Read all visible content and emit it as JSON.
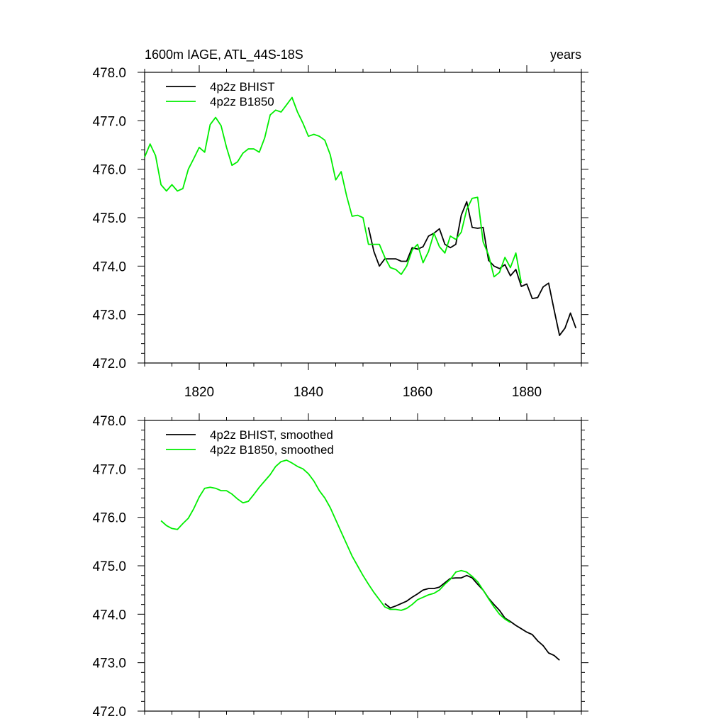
{
  "chart_data": [
    {
      "type": "line",
      "title_left": "1600m IAGE, ATL_44S-18S",
      "title_right": "years",
      "xlim": [
        1810,
        1890
      ],
      "ylim": [
        472.0,
        478.0
      ],
      "x_ticks": [
        1820,
        1840,
        1860,
        1880
      ],
      "x_tick_labels": [
        "1820",
        "1840",
        "1860",
        "1880"
      ],
      "y_ticks": [
        472.0,
        473.0,
        474.0,
        475.0,
        476.0,
        477.0,
        478.0
      ],
      "y_tick_labels": [
        "472.0",
        "473.0",
        "474.0",
        "475.0",
        "476.0",
        "477.0",
        "478.0"
      ],
      "series": [
        {
          "name": "4p2z BHIST",
          "color": "#000000",
          "x": [
            1851,
            1852,
            1853,
            1854,
            1855,
            1856,
            1857,
            1858,
            1859,
            1860,
            1861,
            1862,
            1863,
            1864,
            1865,
            1866,
            1867,
            1868,
            1869,
            1870,
            1871,
            1872,
            1873,
            1874,
            1875,
            1876,
            1877,
            1878,
            1879,
            1880,
            1881,
            1882,
            1883,
            1884,
            1885,
            1886,
            1887,
            1888,
            1889
          ],
          "y": [
            474.8,
            474.3,
            474.0,
            474.15,
            474.15,
            474.15,
            474.1,
            474.1,
            474.38,
            474.35,
            474.4,
            474.62,
            474.68,
            474.77,
            474.45,
            474.38,
            474.45,
            475.05,
            475.33,
            474.8,
            474.78,
            474.8,
            474.12,
            474.0,
            473.95,
            474.03,
            473.8,
            473.93,
            473.58,
            473.63,
            473.33,
            473.35,
            473.57,
            473.65,
            473.1,
            472.57,
            472.72,
            473.03,
            472.72
          ]
        },
        {
          "name": "4p2z B1850",
          "color": "#00ee00",
          "x": [
            1810,
            1811,
            1812,
            1813,
            1814,
            1815,
            1816,
            1817,
            1818,
            1819,
            1820,
            1821,
            1822,
            1823,
            1824,
            1825,
            1826,
            1827,
            1828,
            1829,
            1830,
            1831,
            1832,
            1833,
            1834,
            1835,
            1836,
            1837,
            1838,
            1839,
            1840,
            1841,
            1842,
            1843,
            1844,
            1845,
            1846,
            1847,
            1848,
            1849,
            1850,
            1851,
            1852,
            1853,
            1854,
            1855,
            1856,
            1857,
            1858,
            1859,
            1860,
            1861,
            1862,
            1863,
            1864,
            1865,
            1866,
            1867,
            1868,
            1869,
            1870,
            1871,
            1872,
            1873,
            1874,
            1875,
            1876,
            1877,
            1878,
            1879
          ],
          "y": [
            476.25,
            476.52,
            476.28,
            475.68,
            475.55,
            475.68,
            475.55,
            475.6,
            476.0,
            476.22,
            476.45,
            476.35,
            476.92,
            477.07,
            476.9,
            476.45,
            476.08,
            476.15,
            476.33,
            476.42,
            476.42,
            476.35,
            476.65,
            477.12,
            477.22,
            477.18,
            477.33,
            477.48,
            477.18,
            476.95,
            476.68,
            476.72,
            476.68,
            476.6,
            476.3,
            475.78,
            475.95,
            475.45,
            475.03,
            475.05,
            475.0,
            474.45,
            474.45,
            474.45,
            474.18,
            473.97,
            473.93,
            473.83,
            474.0,
            474.33,
            474.45,
            474.07,
            474.3,
            474.68,
            474.4,
            474.27,
            474.62,
            474.55,
            474.7,
            475.17,
            475.4,
            475.42,
            474.5,
            474.23,
            473.78,
            473.87,
            474.18,
            473.97,
            474.27,
            473.65
          ]
        }
      ]
    },
    {
      "type": "line",
      "xlim": [
        1810,
        1890
      ],
      "ylim": [
        472.0,
        478.0
      ],
      "x_ticks": [
        1820,
        1840,
        1860,
        1880
      ],
      "y_ticks": [
        472.0,
        473.0,
        474.0,
        475.0,
        476.0,
        477.0,
        478.0
      ],
      "y_tick_labels": [
        "472.0",
        "473.0",
        "474.0",
        "475.0",
        "476.0",
        "477.0",
        "478.0"
      ],
      "series": [
        {
          "name": "4p2z BHIST, smoothed",
          "color": "#000000",
          "x": [
            1854,
            1855,
            1856,
            1857,
            1858,
            1859,
            1860,
            1861,
            1862,
            1863,
            1864,
            1865,
            1866,
            1867,
            1868,
            1869,
            1870,
            1871,
            1872,
            1873,
            1874,
            1875,
            1876,
            1877,
            1878,
            1879,
            1880,
            1881,
            1882,
            1883,
            1884,
            1885,
            1886
          ],
          "y": [
            474.22,
            474.13,
            474.17,
            474.22,
            474.27,
            474.35,
            474.42,
            474.5,
            474.53,
            474.53,
            474.56,
            474.65,
            474.74,
            474.75,
            474.75,
            474.8,
            474.75,
            474.62,
            474.5,
            474.33,
            474.2,
            474.08,
            473.92,
            473.85,
            473.77,
            473.7,
            473.63,
            473.58,
            473.45,
            473.35,
            473.2,
            473.15,
            473.05
          ]
        },
        {
          "name": "4p2z B1850, smoothed",
          "color": "#00ee00",
          "x": [
            1813,
            1814,
            1815,
            1816,
            1817,
            1818,
            1819,
            1820,
            1821,
            1822,
            1823,
            1824,
            1825,
            1826,
            1827,
            1828,
            1829,
            1830,
            1831,
            1832,
            1833,
            1834,
            1835,
            1836,
            1837,
            1838,
            1839,
            1840,
            1841,
            1842,
            1843,
            1844,
            1845,
            1846,
            1847,
            1848,
            1849,
            1850,
            1851,
            1852,
            1853,
            1854,
            1855,
            1856,
            1857,
            1858,
            1859,
            1860,
            1861,
            1862,
            1863,
            1864,
            1865,
            1866,
            1867,
            1868,
            1869,
            1870,
            1871,
            1872,
            1873,
            1874,
            1875,
            1876,
            1877
          ],
          "y": [
            475.93,
            475.83,
            475.77,
            475.75,
            475.87,
            475.98,
            476.18,
            476.42,
            476.6,
            476.62,
            476.6,
            476.55,
            476.55,
            476.48,
            476.38,
            476.3,
            476.33,
            476.47,
            476.62,
            476.75,
            476.88,
            477.05,
            477.15,
            477.18,
            477.12,
            477.05,
            477.0,
            476.9,
            476.75,
            476.55,
            476.4,
            476.2,
            475.95,
            475.7,
            475.45,
            475.2,
            475.0,
            474.8,
            474.62,
            474.45,
            474.3,
            474.15,
            474.1,
            474.1,
            474.08,
            474.12,
            474.2,
            474.3,
            474.35,
            474.4,
            474.43,
            474.5,
            474.62,
            474.72,
            474.87,
            474.9,
            474.87,
            474.78,
            474.67,
            474.5,
            474.32,
            474.15,
            474.0,
            473.9,
            473.83
          ]
        }
      ]
    }
  ]
}
